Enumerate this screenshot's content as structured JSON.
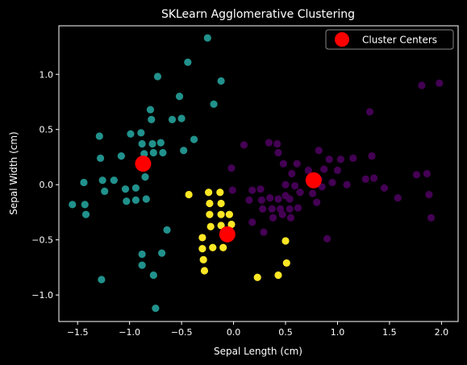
{
  "chart_data": {
    "type": "scatter",
    "title": "SKLearn Agglomerative Clustering",
    "xlabel": "Sepal Length (cm)",
    "ylabel": "Sepal Width (cm)",
    "xlim": [
      -1.68,
      2.16
    ],
    "ylim": [
      -1.24,
      1.44
    ],
    "xticks": [
      -1.5,
      -1.0,
      -0.5,
      0.0,
      0.5,
      1.0,
      1.5,
      2.0
    ],
    "yticks": [
      -1.0,
      -0.5,
      0.0,
      0.5,
      1.0
    ],
    "xtick_labels": [
      "−1.5",
      "−1.0",
      "−0.5",
      "0.0",
      "0.5",
      "1.0",
      "1.5",
      "2.0"
    ],
    "ytick_labels": [
      "−1.0",
      "−0.5",
      "0.0",
      "0.5",
      "1.0"
    ],
    "grid": false,
    "legend": {
      "position": "top-right",
      "entries": [
        "Cluster Centers"
      ]
    },
    "colors": {
      "background": "#000000",
      "purple": "#440154",
      "teal": "#21918c",
      "yellow": "#fde725",
      "centers": "#ff0000"
    },
    "series": [
      {
        "color_key": "purple",
        "points": [
          [
            -0.02,
            0.15
          ],
          [
            -0.01,
            -0.05
          ],
          [
            0.1,
            0.36
          ],
          [
            0.18,
            -0.34
          ],
          [
            0.15,
            -0.14
          ],
          [
            0.18,
            -0.05
          ],
          [
            0.26,
            -0.04
          ],
          [
            0.27,
            -0.14
          ],
          [
            0.28,
            -0.22
          ],
          [
            0.29,
            -0.43
          ],
          [
            0.34,
            0.38
          ],
          [
            0.35,
            -0.12
          ],
          [
            0.37,
            -0.22
          ],
          [
            0.38,
            -0.3
          ],
          [
            0.42,
            0.37
          ],
          [
            0.43,
            0.29
          ],
          [
            0.43,
            -0.13
          ],
          [
            0.45,
            -0.22
          ],
          [
            0.47,
            -0.27
          ],
          [
            0.48,
            0.19
          ],
          [
            0.5,
            -0.1
          ],
          [
            0.5,
            0.0
          ],
          [
            0.54,
            -0.13
          ],
          [
            0.54,
            -0.22
          ],
          [
            0.55,
            -0.3
          ],
          [
            0.56,
            0.1
          ],
          [
            0.59,
            -0.01
          ],
          [
            0.61,
            0.19
          ],
          [
            0.62,
            -0.21
          ],
          [
            0.64,
            -0.07
          ],
          [
            0.72,
            0.13
          ],
          [
            0.76,
            -0.08
          ],
          [
            0.8,
            -0.16
          ],
          [
            0.82,
            0.05
          ],
          [
            0.82,
            0.31
          ],
          [
            0.85,
            -0.02
          ],
          [
            0.87,
            0.14
          ],
          [
            0.9,
            -0.49
          ],
          [
            0.95,
            0.02
          ],
          [
            0.92,
            0.23
          ],
          [
            1.0,
            0.13
          ],
          [
            1.03,
            0.23
          ],
          [
            1.09,
            0.0
          ],
          [
            1.15,
            0.24
          ],
          [
            1.27,
            0.05
          ],
          [
            1.31,
            0.66
          ],
          [
            1.33,
            0.26
          ],
          [
            1.35,
            0.06
          ],
          [
            1.45,
            -0.03
          ],
          [
            1.58,
            -0.12
          ],
          [
            1.76,
            0.09
          ],
          [
            1.81,
            0.9
          ],
          [
            1.86,
            0.1
          ],
          [
            1.88,
            -0.09
          ],
          [
            1.9,
            -0.3
          ],
          [
            1.98,
            0.92
          ]
        ]
      },
      {
        "color_key": "teal",
        "points": [
          [
            -1.55,
            -0.18
          ],
          [
            -1.44,
            0.02
          ],
          [
            -1.43,
            -0.18
          ],
          [
            -1.42,
            -0.27
          ],
          [
            -1.29,
            0.44
          ],
          [
            -1.28,
            0.24
          ],
          [
            -1.27,
            -0.86
          ],
          [
            -1.26,
            0.04
          ],
          [
            -1.24,
            -0.06
          ],
          [
            -1.15,
            0.04
          ],
          [
            -1.08,
            0.26
          ],
          [
            -1.04,
            -0.04
          ],
          [
            -1.03,
            -0.15
          ],
          [
            -0.99,
            0.46
          ],
          [
            -0.94,
            -0.03
          ],
          [
            -0.94,
            -0.14
          ],
          [
            -0.9,
            0.18
          ],
          [
            -0.89,
            0.47
          ],
          [
            -0.88,
            0.37
          ],
          [
            -0.88,
            -0.63
          ],
          [
            -0.88,
            -0.73
          ],
          [
            -0.86,
            0.28
          ],
          [
            -0.85,
            0.07
          ],
          [
            -0.84,
            -0.13
          ],
          [
            -0.8,
            0.68
          ],
          [
            -0.79,
            0.59
          ],
          [
            -0.78,
            0.37
          ],
          [
            -0.77,
            -0.82
          ],
          [
            -0.77,
            0.29
          ],
          [
            -0.75,
            -1.12
          ],
          [
            -0.73,
            0.98
          ],
          [
            -0.7,
            0.38
          ],
          [
            -0.69,
            -0.62
          ],
          [
            -0.68,
            0.29
          ],
          [
            -0.64,
            -0.41
          ],
          [
            -0.59,
            0.59
          ],
          [
            -0.52,
            0.8
          ],
          [
            -0.5,
            0.6
          ],
          [
            -0.48,
            0.31
          ],
          [
            -0.44,
            1.11
          ],
          [
            -0.38,
            0.41
          ],
          [
            -0.25,
            1.33
          ],
          [
            -0.19,
            0.73
          ],
          [
            -0.12,
            0.94
          ]
        ]
      },
      {
        "color_key": "yellow",
        "points": [
          [
            -0.43,
            -0.09
          ],
          [
            -0.3,
            -0.48
          ],
          [
            -0.3,
            -0.58
          ],
          [
            -0.29,
            -0.68
          ],
          [
            -0.28,
            -0.78
          ],
          [
            -0.24,
            -0.07
          ],
          [
            -0.23,
            -0.17
          ],
          [
            -0.23,
            -0.27
          ],
          [
            -0.22,
            -0.38
          ],
          [
            -0.2,
            -0.57
          ],
          [
            -0.13,
            -0.07
          ],
          [
            -0.12,
            -0.17
          ],
          [
            -0.12,
            -0.27
          ],
          [
            -0.12,
            -0.37
          ],
          [
            -0.1,
            -0.57
          ],
          [
            -0.08,
            -0.47
          ],
          [
            -0.04,
            -0.27
          ],
          [
            -0.02,
            -0.36
          ],
          [
            0.23,
            -0.84
          ],
          [
            0.43,
            -0.82
          ],
          [
            0.5,
            -0.51
          ],
          [
            0.51,
            -0.71
          ]
        ]
      }
    ],
    "centers": {
      "name": "Cluster Centers",
      "points": [
        [
          -0.87,
          0.19
        ],
        [
          0.77,
          0.04
        ],
        [
          -0.06,
          -0.45
        ]
      ]
    }
  }
}
